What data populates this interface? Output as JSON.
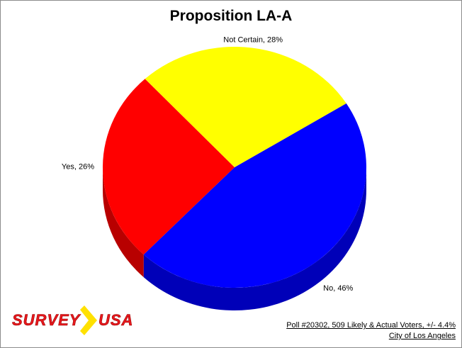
{
  "chart_data": {
    "type": "pie",
    "title": "Proposition LA-A",
    "slices": [
      {
        "label": "Yes, 26%",
        "value": 26,
        "color": "#ff0000"
      },
      {
        "label": "No, 46%",
        "value": 46,
        "color": "#0000ff"
      },
      {
        "label": "Not Certain, 28%",
        "value": 28,
        "color": "#ffff00"
      }
    ]
  },
  "logo": {
    "brand_left": "SURVEY",
    "brand_right": "USA",
    "brand_color": "#e8191e",
    "arrow_color": "#ffe100"
  },
  "footer": {
    "poll": "Poll #20302, 509 Likely & Actual Voters, +/- 4.4%",
    "location": "City of Los Angeles"
  }
}
